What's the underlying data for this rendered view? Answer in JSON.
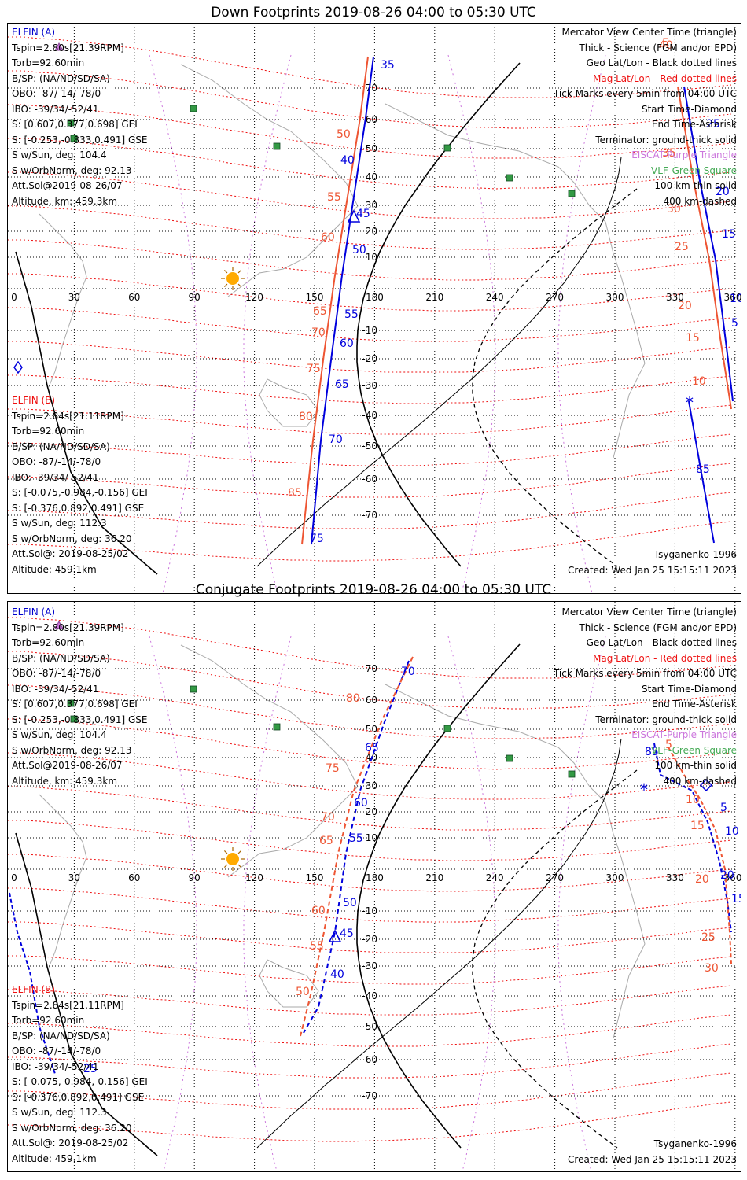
{
  "panels": [
    {
      "title": "Down Footprints 2019-08-26 04:00 to 05:30 UTC",
      "sat_a": {
        "name": "ELFIN (A)",
        "lines": [
          "Tspin=2.80s[21.39RPM]",
          "Torb=92.60min",
          "B/SP: (NA/ND/SD/SA)",
          "OBO: -87/-14/-78/0",
          "IBO: -39/34/-52/41",
          "S: [0.607,0.377,0.698] GEI",
          "S: [-0.253,-0.833,0.491] GSE",
          "S w/Sun, deg: 104.4",
          "S w/OrbNorm, deg: 92.13",
          "Att.Sol@2019-08-26/07",
          "Altitude, km: 459.3km"
        ]
      },
      "sat_b": {
        "name": "ELFIN (B)",
        "lines": [
          "Tspin=2.84s[21.11RPM]",
          "Torb=92.60min",
          "B/SP: (NA/ND/SD/SA)",
          "OBO: -87/-14/-78/0",
          "IBO: -39/34/-52/41",
          "S: [-0.075,-0.984,-0.156] GEI",
          "S: [-0.376,0.892,0.491] GSE",
          "S w/Sun, deg: 112.3",
          "S w/OrbNorm, deg: 36.20",
          "Att.Sol@: 2019-08-25/02",
          "Altitude: 459.1km"
        ]
      },
      "model": "Tsyganenko-1996",
      "created": "Created: Wed Jan 25 15:15:11 2023"
    },
    {
      "title": "Conjugate Footprints 2019-08-26 04:00 to 05:30 UTC",
      "sat_a": {
        "name": "ELFIN (A)",
        "lines": [
          "Tspin=2.80s[21.39RPM]",
          "Torb=92.60min",
          "B/SP: (NA/ND/SD/SA)",
          "OBO: -87/-14/-78/0",
          "IBO: -39/34/-52/41",
          "S: [0.607,0.377,0.698] GEI",
          "S: [-0.253,-0.833,0.491] GSE",
          "S w/Sun, deg: 104.4",
          "S w/OrbNorm, deg: 92.13",
          "Att.Sol@2019-08-26/07",
          "Altitude, km: 459.3km"
        ]
      },
      "sat_b": {
        "name": "ELFIN (B)",
        "lines": [
          "Tspin=2.84s[21.11RPM]",
          "Torb=92.60min",
          "B/SP: (NA/ND/SD/SA)",
          "OBO: -87/-14/-78/0",
          "IBO: -39/34/-52/41",
          "S: [-0.075,-0.984,-0.156] GEI",
          "S: [-0.376,0.892,0.491] GSE",
          "S w/Sun, deg: 112.3",
          "S w/OrbNorm, deg: 36.20",
          "Att.Sol@: 2019-08-25/02",
          "Altitude: 459.1km"
        ]
      },
      "model": "Tsyganenko-1996",
      "created": "Created: Wed Jan 25 15:15:11 2023"
    }
  ],
  "legend": [
    {
      "text": "Mercator View Center Time (triangle)",
      "color": "#000000"
    },
    {
      "text": "Thick - Science (FGM and/or EPD)",
      "color": "#000000"
    },
    {
      "text": "Geo Lat/Lon - Black dotted lines",
      "color": "#000000"
    },
    {
      "text": "Mag Lat/Lon - Red dotted lines",
      "color": "#ee1111"
    },
    {
      "text": "Tick Marks every 5min from 04:00 UTC",
      "color": "#000000"
    },
    {
      "text": "Start Time-Diamond",
      "color": "#000000"
    },
    {
      "text": "End Time-Asterisk",
      "color": "#000000"
    },
    {
      "text": "Terminator: ground-thick solid",
      "color": "#000000"
    },
    {
      "text": "EISCAT-Purple Triangle",
      "color": "#cc77dd"
    },
    {
      "text": "VLF-Green Square",
      "color": "#44aa55"
    },
    {
      "text": "100 km-thin solid",
      "color": "#000000"
    },
    {
      "text": "400 km-dashed",
      "color": "#000000"
    }
  ],
  "map": {
    "lon_labels": [
      "0",
      "30",
      "60",
      "90",
      "120",
      "150",
      "180",
      "210",
      "240",
      "270",
      "300",
      "330",
      "360"
    ],
    "lat_labels": [
      "70",
      "60",
      "50",
      "40",
      "30",
      "20",
      "10",
      "-10",
      "-20",
      "-30",
      "-40",
      "-50",
      "-60",
      "-70"
    ],
    "colors": {
      "track_a": "#0000dd",
      "track_b": "#ee5533",
      "mag_grid": "#ee1111",
      "geo_grid": "#000000",
      "terminator": "#000000",
      "coast": "#aaaaaa",
      "vlf": "#339944",
      "eiscat": "#cc77dd",
      "sun": "#ffaa00"
    },
    "down_track_a_labels": [
      "35",
      "40",
      "45",
      "50",
      "55",
      "60",
      "65",
      "70",
      "75",
      "85",
      "5",
      "10",
      "15",
      "20",
      "25"
    ],
    "down_track_b_labels": [
      "50",
      "55",
      "60",
      "65",
      "70",
      "75",
      "80",
      "85",
      "5",
      "10",
      "15",
      "20",
      "25",
      "30",
      "35",
      "40"
    ],
    "conj_track_a_labels": [
      "70",
      "65",
      "60",
      "55",
      "50",
      "45",
      "40",
      "85",
      "5",
      "10",
      "15",
      "20",
      "25"
    ],
    "conj_track_b_labels": [
      "80",
      "75",
      "70",
      "65",
      "60",
      "55",
      "50",
      "5",
      "10",
      "15",
      "20",
      "25",
      "30"
    ]
  }
}
